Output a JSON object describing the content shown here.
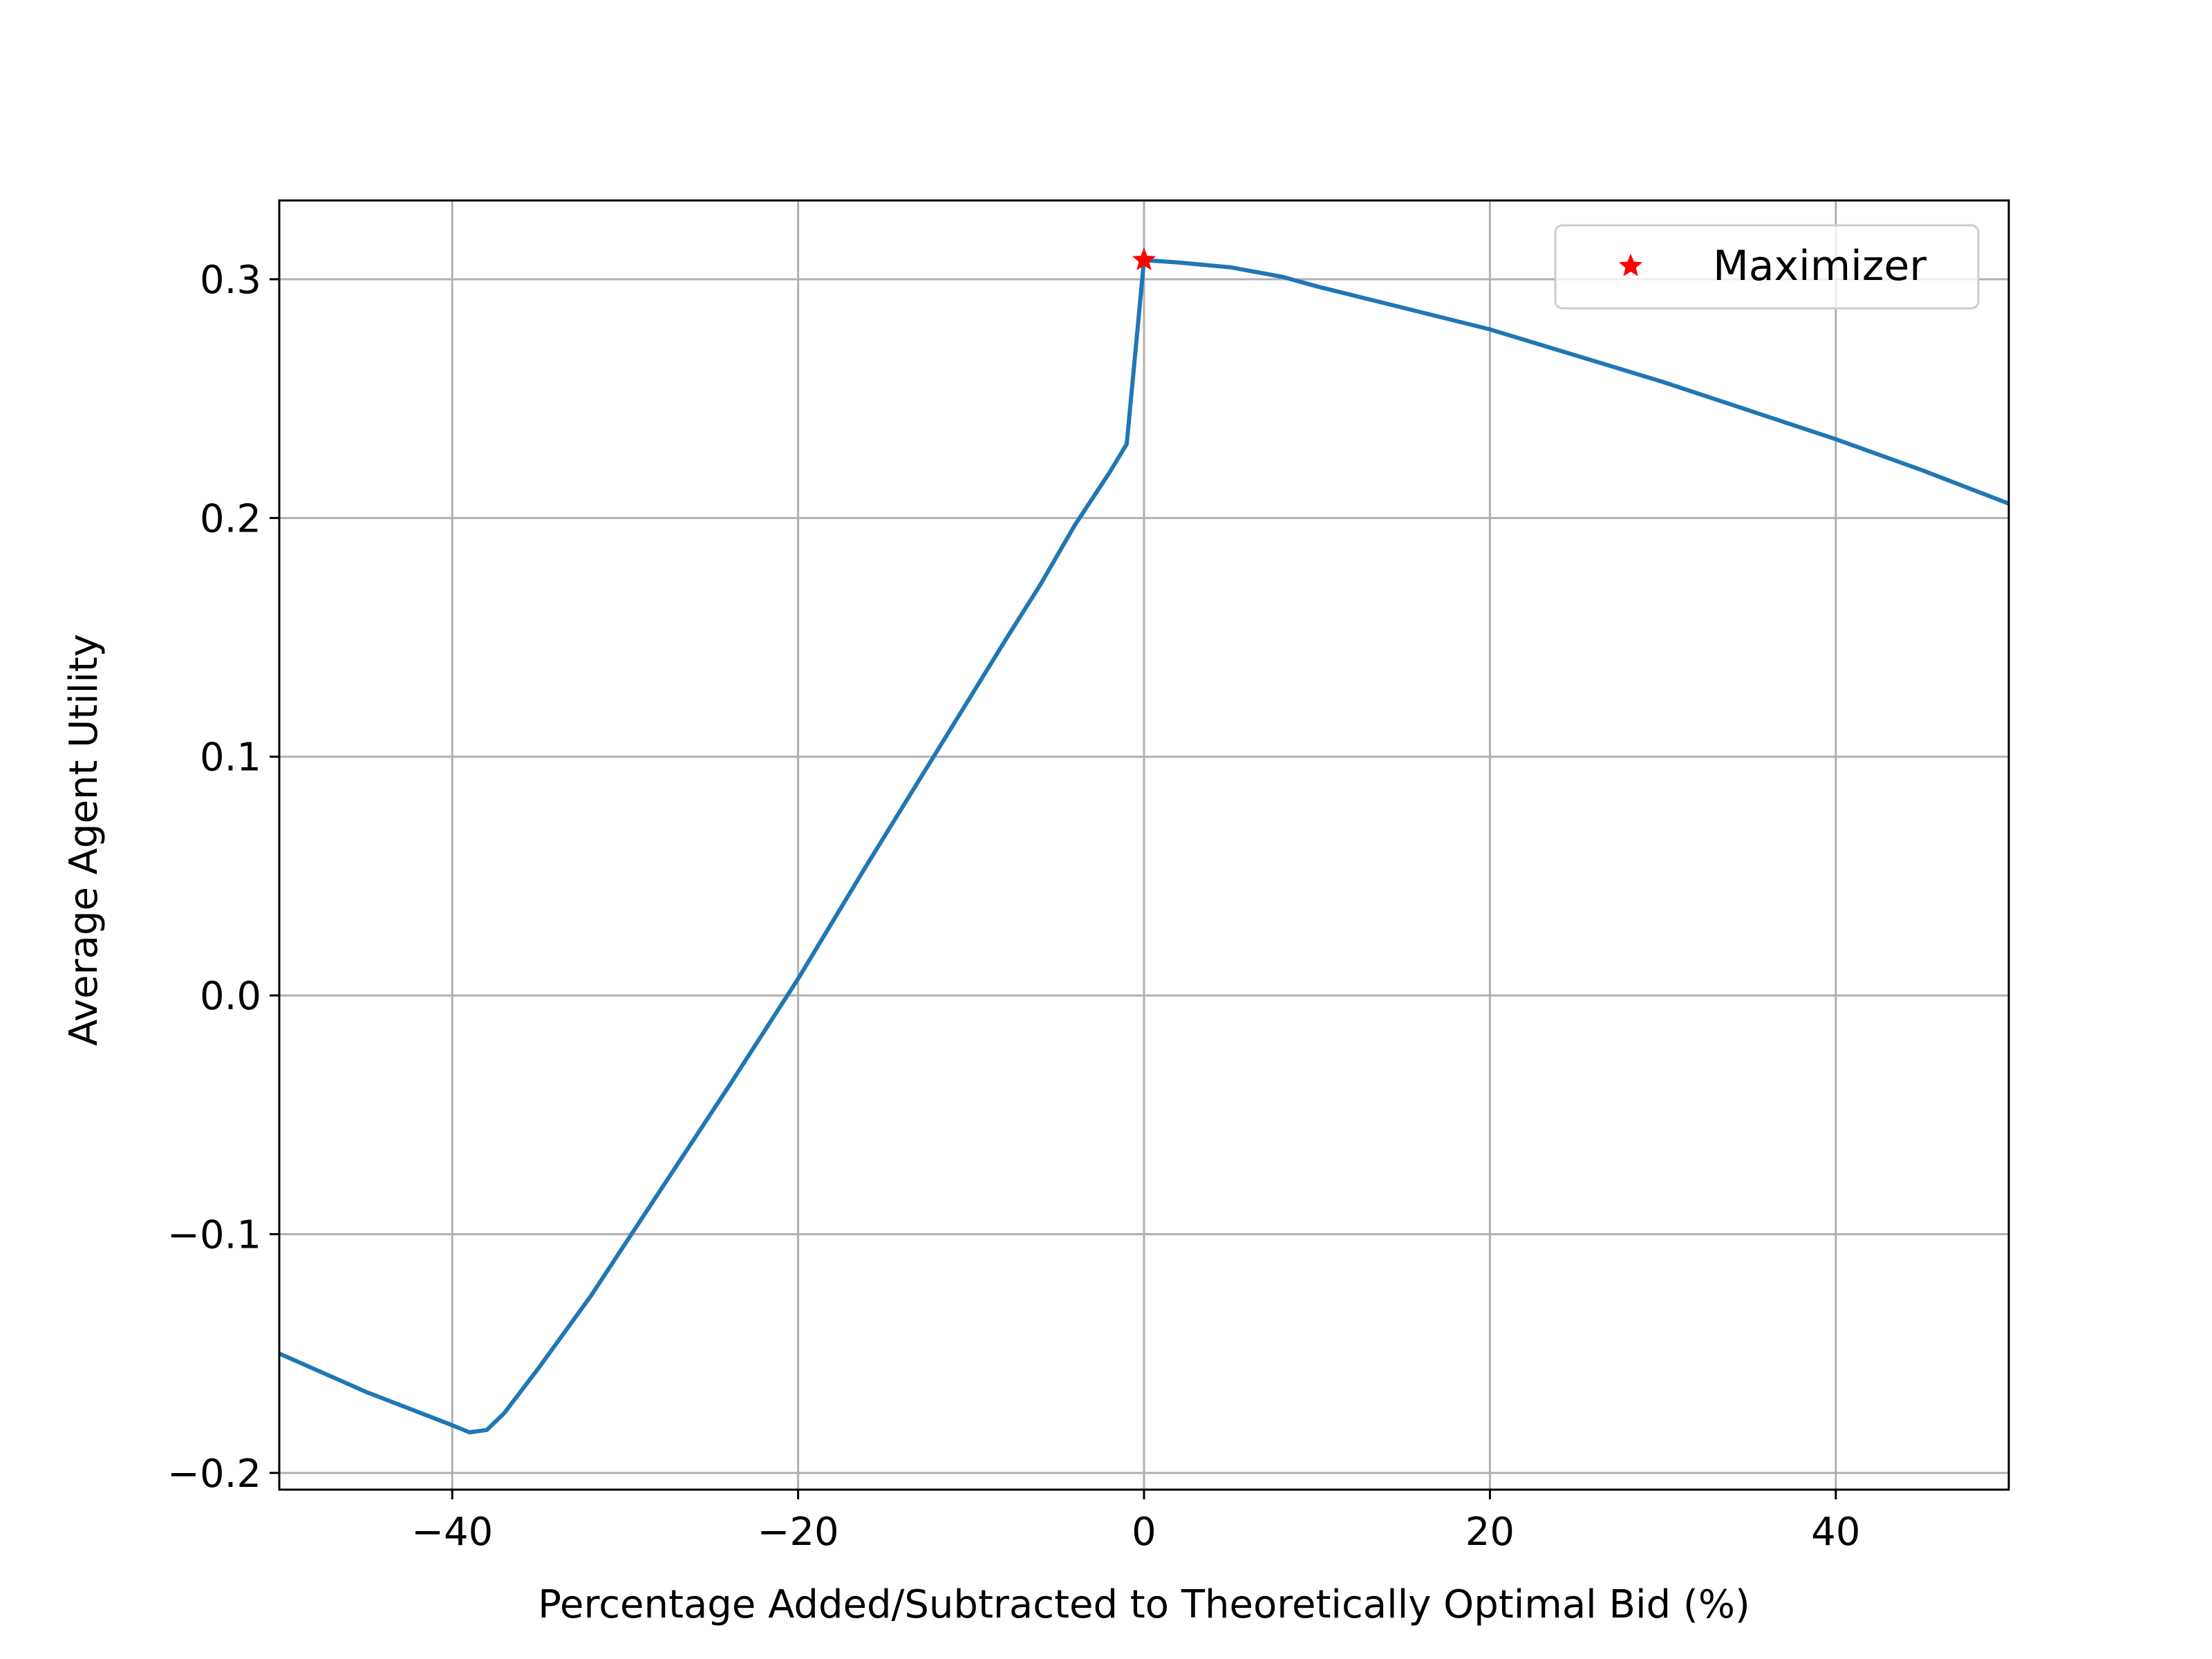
{
  "chart_data": {
    "type": "line",
    "title": "",
    "xlabel": "Percentage Added/Subtracted to Theoretically Optimal Bid (%)",
    "ylabel": "Average Agent Utility",
    "xlim": [
      -50,
      50
    ],
    "ylim": [
      -0.207,
      0.333
    ],
    "grid": true,
    "legend_position": "top-right",
    "x_ticks": [
      -40,
      -20,
      0,
      20,
      40
    ],
    "x_tick_labels": [
      "−40",
      "−20",
      "0",
      "20",
      "40"
    ],
    "y_ticks": [
      -0.2,
      -0.1,
      0.0,
      0.1,
      0.2,
      0.3
    ],
    "y_tick_labels": [
      "−0.2",
      "−0.1",
      "0.0",
      "0.1",
      "0.2",
      "0.3"
    ],
    "colors": {
      "line": "#1f77b4",
      "marker": "#ff0000",
      "grid": "#b0b0b0",
      "frame": "#000000"
    },
    "series": [
      {
        "values_x": [
          -50,
          -45,
          -40,
          -39,
          -38,
          -37,
          -35,
          -32,
          -28,
          -24,
          -20,
          -16,
          -12,
          -8,
          -6,
          -4,
          -2,
          -1,
          0,
          2,
          5,
          8,
          10,
          15,
          20,
          25,
          30,
          35,
          40,
          45,
          50
        ],
        "values_y": [
          -0.15,
          -0.166,
          -0.18,
          -0.183,
          -0.182,
          -0.175,
          -0.156,
          -0.126,
          -0.082,
          -0.038,
          0.007,
          0.055,
          0.102,
          0.149,
          0.172,
          0.197,
          0.219,
          0.231,
          0.308,
          0.307,
          0.305,
          0.301,
          0.297,
          0.288,
          0.279,
          0.268,
          0.257,
          0.245,
          0.233,
          0.22,
          0.206
        ]
      }
    ],
    "markers": [
      {
        "name": "Maximizer",
        "x": 0,
        "y": 0.308,
        "symbol": "star"
      }
    ]
  }
}
